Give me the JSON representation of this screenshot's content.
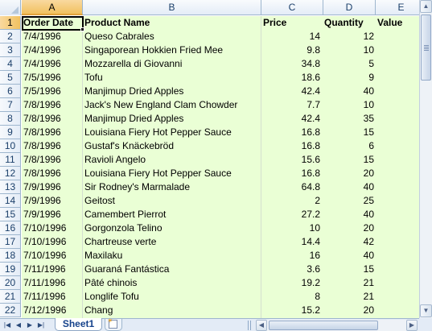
{
  "columns": [
    "A",
    "B",
    "C",
    "D",
    "E"
  ],
  "header_row": {
    "order_date": "Order Date",
    "product_name": "Product Name",
    "price": "Price",
    "quantity": "Quantity",
    "value": "Value"
  },
  "rows": [
    {
      "row": "2",
      "date": "7/4/1996",
      "product": "Queso Cabrales",
      "price": "14",
      "qty": "12"
    },
    {
      "row": "3",
      "date": "7/4/1996",
      "product": "Singaporean Hokkien Fried Mee",
      "price": "9.8",
      "qty": "10"
    },
    {
      "row": "4",
      "date": "7/4/1996",
      "product": "Mozzarella di Giovanni",
      "price": "34.8",
      "qty": "5"
    },
    {
      "row": "5",
      "date": "7/5/1996",
      "product": "Tofu",
      "price": "18.6",
      "qty": "9"
    },
    {
      "row": "6",
      "date": "7/5/1996",
      "product": "Manjimup Dried Apples",
      "price": "42.4",
      "qty": "40"
    },
    {
      "row": "7",
      "date": "7/8/1996",
      "product": "Jack's New England Clam Chowder",
      "price": "7.7",
      "qty": "10"
    },
    {
      "row": "8",
      "date": "7/8/1996",
      "product": "Manjimup Dried Apples",
      "price": "42.4",
      "qty": "35"
    },
    {
      "row": "9",
      "date": "7/8/1996",
      "product": "Louisiana Fiery Hot Pepper Sauce",
      "price": "16.8",
      "qty": "15"
    },
    {
      "row": "10",
      "date": "7/8/1996",
      "product": "Gustaf's Knäckebröd",
      "price": "16.8",
      "qty": "6"
    },
    {
      "row": "11",
      "date": "7/8/1996",
      "product": "Ravioli Angelo",
      "price": "15.6",
      "qty": "15"
    },
    {
      "row": "12",
      "date": "7/8/1996",
      "product": "Louisiana Fiery Hot Pepper Sauce",
      "price": "16.8",
      "qty": "20"
    },
    {
      "row": "13",
      "date": "7/9/1996",
      "product": "Sir Rodney's Marmalade",
      "price": "64.8",
      "qty": "40"
    },
    {
      "row": "14",
      "date": "7/9/1996",
      "product": "Geitost",
      "price": "2",
      "qty": "25"
    },
    {
      "row": "15",
      "date": "7/9/1996",
      "product": "Camembert Pierrot",
      "price": "27.2",
      "qty": "40"
    },
    {
      "row": "16",
      "date": "7/10/1996",
      "product": "Gorgonzola Telino",
      "price": "10",
      "qty": "20"
    },
    {
      "row": "17",
      "date": "7/10/1996",
      "product": "Chartreuse verte",
      "price": "14.4",
      "qty": "42"
    },
    {
      "row": "18",
      "date": "7/10/1996",
      "product": "Maxilaku",
      "price": "16",
      "qty": "40"
    },
    {
      "row": "19",
      "date": "7/11/1996",
      "product": "Guaraná Fantástica",
      "price": "3.6",
      "qty": "15"
    },
    {
      "row": "20",
      "date": "7/11/1996",
      "product": "Pâté chinois",
      "price": "19.2",
      "qty": "21"
    },
    {
      "row": "21",
      "date": "7/11/1996",
      "product": "Longlife Tofu",
      "price": "8",
      "qty": "21"
    },
    {
      "row": "22",
      "date": "7/12/1996",
      "product": "Chang",
      "price": "15.2",
      "qty": "20"
    }
  ],
  "header_row_number": "1",
  "sheet_tab": "Sheet1",
  "colors": {
    "grid_fill": "#eaffd5",
    "selection_header": "#f1c15f",
    "tab_text": "#15428b"
  }
}
